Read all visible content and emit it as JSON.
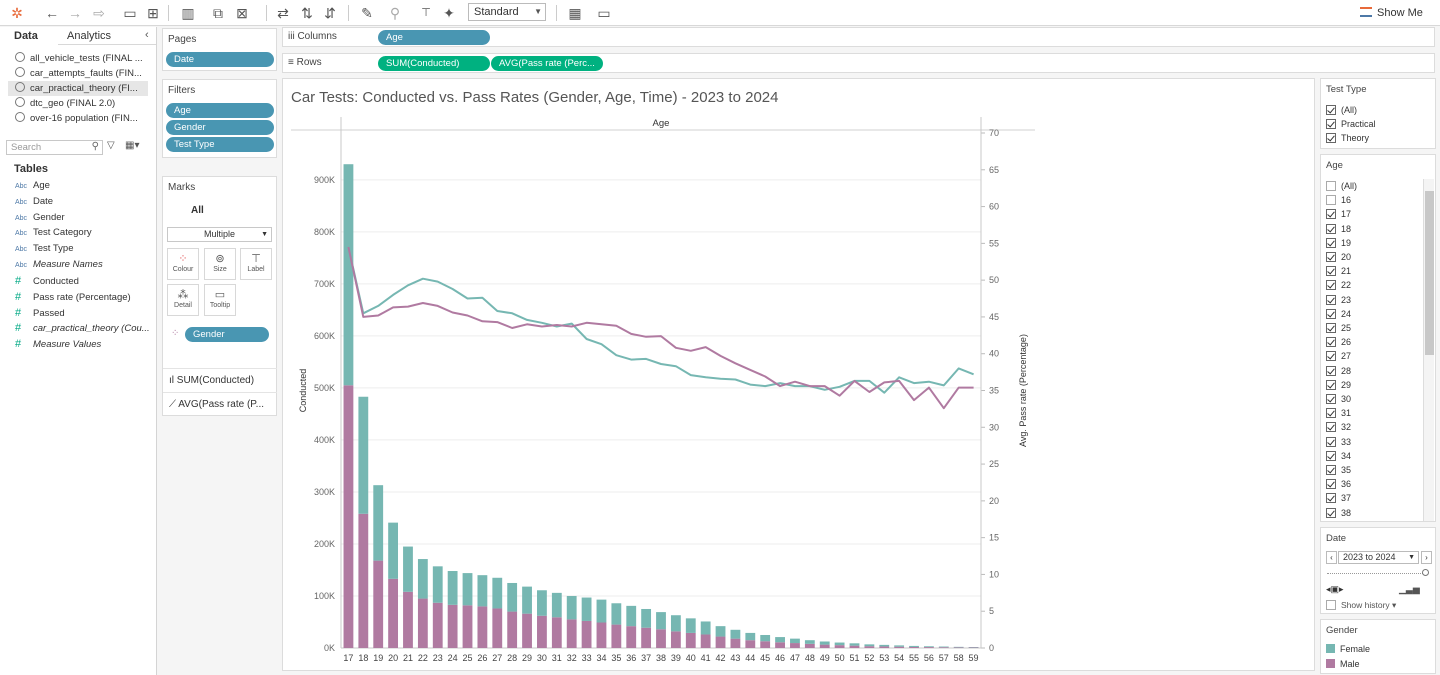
{
  "toolbar": {
    "icons": [
      "tableau-logo-icon",
      "undo-icon",
      "redo-icon",
      "replay-icon",
      "save-icon",
      "new-datasource-icon",
      "new-worksheet-icon",
      "duplicate-icon",
      "clear-icon",
      "swap-icon",
      "sort-asc-icon",
      "sort-desc-icon",
      "highlight-icon",
      "group-icon",
      "label-icon",
      "pin-icon",
      "show-cards-icon",
      "presentation-icon"
    ],
    "fit": "Standard",
    "show_me": "Show Me"
  },
  "data_pane": {
    "tab_data": "Data",
    "tab_analytics": "Analytics",
    "datasources": [
      "all_vehicle_tests (FINAL ...",
      "car_attempts_faults (FIN...",
      "car_practical_theory (FI...",
      "dtc_geo (FINAL 2.0)",
      "over-16 population (FIN..."
    ],
    "active_datasource_index": 2,
    "search_placeholder": "Search",
    "tables_heading": "Tables",
    "dimensions": [
      {
        "type": "Abc",
        "name": "Age"
      },
      {
        "type": "Abc",
        "name": "Date"
      },
      {
        "type": "Abc",
        "name": "Gender"
      },
      {
        "type": "Abc",
        "name": "Test Category"
      },
      {
        "type": "Abc",
        "name": "Test Type"
      },
      {
        "type": "Abc",
        "name": "Measure Names",
        "italic": true
      }
    ],
    "measures": [
      {
        "type": "#",
        "name": "Conducted"
      },
      {
        "type": "#",
        "name": "Pass rate (Percentage)"
      },
      {
        "type": "#",
        "name": "Passed"
      },
      {
        "type": "#",
        "name": "car_practical_theory (Cou...",
        "italic": true
      },
      {
        "type": "#",
        "name": "Measure Values",
        "italic": true
      }
    ]
  },
  "pages": {
    "title": "Pages",
    "pill": "Date"
  },
  "filters": {
    "title": "Filters",
    "pills": [
      "Age",
      "Gender",
      "Test Type"
    ]
  },
  "marks": {
    "title": "Marks",
    "all": "All",
    "mark_type": "Multiple",
    "buttons": [
      "Colour",
      "Size",
      "Label",
      "Detail",
      "Tooltip"
    ],
    "color_pill": "Gender",
    "measures": [
      "SUM(Conducted)",
      "AVG(Pass rate (P..."
    ]
  },
  "shelves": {
    "columns_label": "Columns",
    "columns": [
      "Age"
    ],
    "rows_label": "Rows",
    "rows": [
      "SUM(Conducted)",
      "AVG(Pass rate (Perc..."
    ]
  },
  "test_type_filter": {
    "title": "Test Type",
    "items": [
      {
        "label": "(All)",
        "checked": true
      },
      {
        "label": "Practical",
        "checked": true
      },
      {
        "label": "Theory",
        "checked": true
      }
    ]
  },
  "age_filter": {
    "title": "Age",
    "items": [
      {
        "label": "(All)",
        "checked": false
      },
      {
        "label": "16",
        "checked": false
      },
      {
        "label": "17",
        "checked": true
      },
      {
        "label": "18",
        "checked": true
      },
      {
        "label": "19",
        "checked": true
      },
      {
        "label": "20",
        "checked": true
      },
      {
        "label": "21",
        "checked": true
      },
      {
        "label": "22",
        "checked": true
      },
      {
        "label": "23",
        "checked": true
      },
      {
        "label": "24",
        "checked": true
      },
      {
        "label": "25",
        "checked": true
      },
      {
        "label": "26",
        "checked": true
      },
      {
        "label": "27",
        "checked": true
      },
      {
        "label": "28",
        "checked": true
      },
      {
        "label": "29",
        "checked": true
      },
      {
        "label": "30",
        "checked": true
      },
      {
        "label": "31",
        "checked": true
      },
      {
        "label": "32",
        "checked": true
      },
      {
        "label": "33",
        "checked": true
      },
      {
        "label": "34",
        "checked": true
      },
      {
        "label": "35",
        "checked": true
      },
      {
        "label": "36",
        "checked": true
      },
      {
        "label": "37",
        "checked": true
      },
      {
        "label": "38",
        "checked": true
      }
    ]
  },
  "date_page": {
    "title": "Date",
    "value": "2023 to 2024",
    "show_history": "Show history"
  },
  "gender_legend": {
    "title": "Gender",
    "items": [
      {
        "label": "Female",
        "color": "#76b7b2"
      },
      {
        "label": "Male",
        "color": "#b07aa1"
      }
    ]
  },
  "chart_data": {
    "type": "bar",
    "title": "Car Tests: Conducted vs. Pass Rates (Gender, Age, Time) - 2023 to 2024",
    "header": "Age",
    "xlabel": "",
    "ylabel": "Conducted",
    "y2label": "Avg. Pass rate (Percentage)",
    "ylim": [
      0,
      990000
    ],
    "y_ticks": [
      0,
      100000,
      200000,
      300000,
      400000,
      500000,
      600000,
      700000,
      800000,
      900000
    ],
    "y_tick_labels": [
      "0K",
      "100K",
      "200K",
      "300K",
      "400K",
      "500K",
      "600K",
      "700K",
      "800K",
      "900K"
    ],
    "y2lim": [
      0,
      70
    ],
    "y2_ticks": [
      0,
      5,
      10,
      15,
      20,
      25,
      30,
      35,
      40,
      45,
      50,
      55,
      60,
      65,
      70
    ],
    "stacked": true,
    "categories": [
      "17",
      "18",
      "19",
      "20",
      "21",
      "22",
      "23",
      "24",
      "25",
      "26",
      "27",
      "28",
      "29",
      "30",
      "31",
      "32",
      "33",
      "34",
      "35",
      "36",
      "37",
      "38",
      "39",
      "40",
      "41",
      "42",
      "43",
      "44",
      "45",
      "46",
      "47",
      "48",
      "49",
      "50",
      "51",
      "52",
      "53",
      "54",
      "55",
      "56",
      "57",
      "58",
      "59"
    ],
    "colors": {
      "Female": "#76b7b2",
      "Male": "#b07aa1"
    },
    "series": [
      {
        "name": "Male",
        "kind": "bar",
        "axis": "left",
        "values": [
          505000,
          258000,
          168000,
          133000,
          108000,
          95000,
          87000,
          83000,
          82000,
          80000,
          76000,
          70000,
          66000,
          62000,
          59000,
          55000,
          52000,
          49000,
          45000,
          42000,
          39000,
          36000,
          32000,
          29000,
          26000,
          22000,
          18000,
          15000,
          13000,
          11000,
          9500,
          8000,
          6500,
          5500,
          4500,
          3500,
          3000,
          2500,
          2000,
          1800,
          1500,
          1200,
          1000
        ]
      },
      {
        "name": "Female",
        "kind": "bar",
        "axis": "left",
        "values": [
          425000,
          225000,
          145000,
          108000,
          87000,
          76000,
          70000,
          65000,
          62000,
          60000,
          59000,
          55000,
          52000,
          49000,
          47000,
          45000,
          45000,
          44000,
          41000,
          39000,
          36000,
          33000,
          31000,
          28000,
          25000,
          20000,
          17000,
          14000,
          12000,
          10000,
          8500,
          7000,
          6000,
          5000,
          4500,
          3500,
          3000,
          2500,
          2000,
          1500,
          1300,
          1000,
          800
        ]
      },
      {
        "name": "Female",
        "kind": "line",
        "axis": "right",
        "values": [
          54.5,
          45.5,
          46.5,
          48.0,
          49.3,
          50.2,
          49.8,
          48.8,
          47.5,
          47.6,
          45.8,
          45.5,
          44.6,
          44.2,
          43.7,
          44.1,
          42.0,
          41.3,
          39.8,
          39.2,
          39.3,
          38.6,
          38.3,
          37.1,
          36.8,
          36.6,
          36.5,
          35.8,
          35.6,
          36.0,
          35.6,
          35.6,
          35.1,
          35.5,
          36.3,
          36.3,
          34.7,
          36.8,
          36.0,
          36.2,
          35.7,
          38.0,
          37.2
        ]
      },
      {
        "name": "Male",
        "kind": "line",
        "axis": "right",
        "values": [
          54.5,
          45.0,
          45.2,
          46.3,
          46.4,
          46.9,
          46.5,
          45.6,
          45.2,
          44.4,
          44.3,
          43.5,
          44.0,
          43.7,
          43.9,
          43.7,
          44.2,
          44.0,
          43.8,
          42.7,
          42.3,
          42.4,
          40.8,
          40.4,
          40.9,
          39.7,
          38.7,
          37.8,
          36.9,
          35.6,
          36.2,
          35.6,
          35.6,
          34.3,
          36.3,
          34.8,
          36.1,
          36.3,
          33.7,
          35.4,
          32.6,
          35.4,
          35.4
        ]
      }
    ]
  }
}
